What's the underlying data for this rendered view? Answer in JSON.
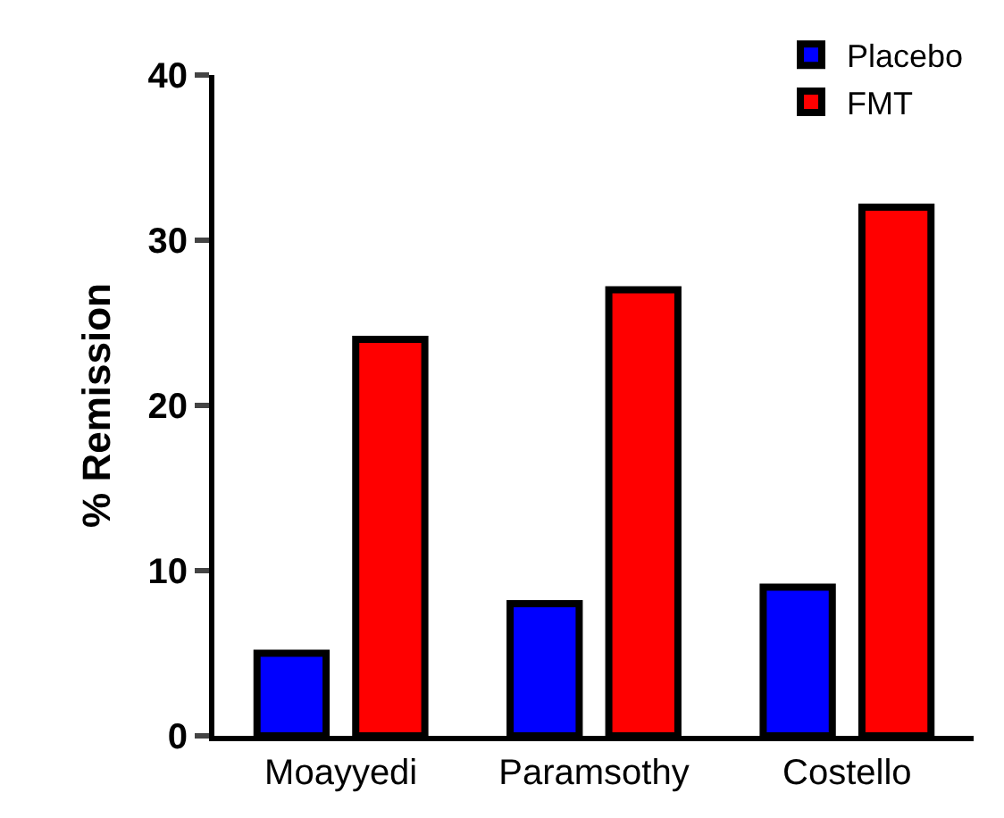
{
  "chart_data": {
    "type": "bar",
    "ylabel": "% Remission",
    "categories": [
      "Moayyedi",
      "Paramsothy",
      "Costello"
    ],
    "series": [
      {
        "name": "Placebo",
        "color": "#0000ff",
        "values": [
          5,
          8,
          9
        ]
      },
      {
        "name": "FMT",
        "color": "#ff0000",
        "values": [
          24,
          27,
          32
        ]
      }
    ],
    "ylim": [
      0,
      40
    ],
    "yticks": [
      0,
      10,
      20,
      30,
      40
    ],
    "legend": "top right"
  }
}
